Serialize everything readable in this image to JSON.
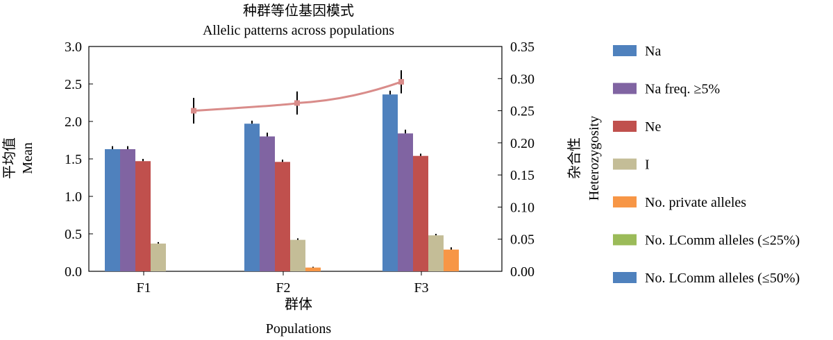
{
  "chart_data": {
    "type": "bar",
    "title_cn": "种群等位基因模式",
    "title_en": "Allelic patterns across populations",
    "xlabel_cn": "群体",
    "xlabel_en": "Populations",
    "ylabel_cn": "平均值",
    "ylabel_en": "Mean",
    "y2label_cn": "杂合性",
    "y2label_en": "Heterozygosity",
    "categories": [
      "F1",
      "F2",
      "F3"
    ],
    "ylim": [
      0,
      3.0
    ],
    "yticks": [
      "0.0",
      "0.5",
      "1.0",
      "1.5",
      "2.0",
      "2.5",
      "3.0"
    ],
    "y2lim": [
      0,
      0.35
    ],
    "y2ticks": [
      "0.00",
      "0.05",
      "0.10",
      "0.15",
      "0.20",
      "0.25",
      "0.30",
      "0.35"
    ],
    "series": [
      {
        "name": "Na",
        "color": "#4f81bd",
        "values": [
          1.63,
          1.97,
          2.36
        ],
        "errors": [
          0.04,
          0.04,
          0.05
        ]
      },
      {
        "name": "Na freq. ≥5%",
        "color": "#8064a2",
        "values": [
          1.63,
          1.8,
          1.84
        ],
        "errors": [
          0.04,
          0.05,
          0.05
        ]
      },
      {
        "name": "Ne",
        "color": "#c0504d",
        "values": [
          1.47,
          1.46,
          1.54
        ],
        "errors": [
          0.03,
          0.03,
          0.03
        ]
      },
      {
        "name": "I",
        "color": "#c4bd97",
        "values": [
          0.37,
          0.42,
          0.48
        ],
        "errors": [
          0.02,
          0.02,
          0.02
        ]
      },
      {
        "name": "No. private alleles",
        "color": "#f79646",
        "values": [
          0.0,
          0.05,
          0.29
        ],
        "errors": [
          0.0,
          0.01,
          0.03
        ]
      },
      {
        "name": "No. LComm alleles (≤25%)",
        "color": "#9bbb59",
        "values": [
          0,
          0,
          0
        ],
        "errors": [
          0,
          0,
          0
        ]
      },
      {
        "name": "No. LComm alleles (≤50%)",
        "color": "#4f81bd",
        "values": [
          0,
          0,
          0
        ],
        "errors": [
          0,
          0,
          0
        ]
      }
    ],
    "line_series": {
      "name": "Heterozygosity",
      "axis": "right",
      "color": "#d98c8a",
      "values": [
        0.25,
        0.262,
        0.295
      ],
      "errors": [
        0.02,
        0.018,
        0.018
      ]
    }
  }
}
